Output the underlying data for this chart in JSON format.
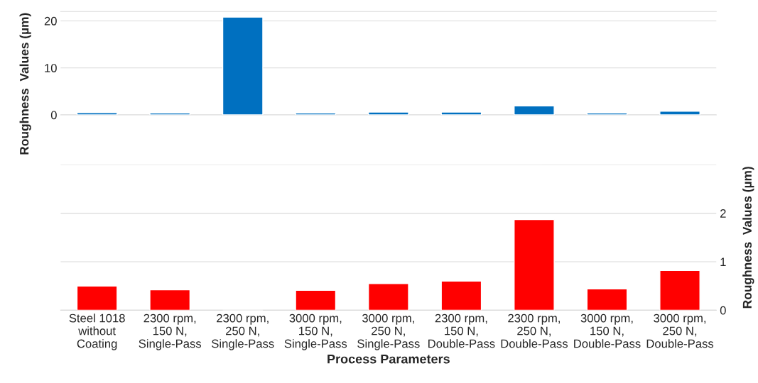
{
  "chart_data": [
    {
      "type": "bar",
      "categories": [
        null,
        null,
        null,
        null,
        null,
        null,
        null,
        null,
        null
      ],
      "series": [
        {
          "color": "#0070c0",
          "values": [
            0.5,
            0.4,
            20.8,
            0.4,
            0.6,
            0.6,
            1.9,
            0.4,
            0.8
          ]
        }
      ],
      "ylim": [
        0,
        22
      ],
      "yticks": [
        0,
        10,
        20
      ],
      "ylabel": "Roughness  Values (µm)",
      "grid": "y",
      "tick_labels": "y"
    },
    {
      "type": "bar",
      "categories": [
        "Steel 1018\nwithout\nCoating",
        "2300 rpm,\n150 N,\nSingle-Pass",
        "2300 rpm,\n250 N,\nSingle-Pass",
        "3000 rpm,\n150 N,\nSingle-Pass",
        "3000 rpm,\n250 N,\nSingle-Pass",
        "2300 rpm,\n150 N,\nDouble-Pass",
        "2300 rpm,\n250 N,\nDouble-Pass",
        "3000 rpm,\n150 N,\nDouble-Pass",
        "3000 rpm,\n250 N,\nDouble-Pass"
      ],
      "series": [
        {
          "color": "#ff0000",
          "axis": "y2",
          "values": [
            0.5,
            0.42,
            null,
            0.41,
            0.55,
            0.6,
            1.87,
            0.44,
            0.82
          ]
        }
      ],
      "y2lim": [
        0,
        3
      ],
      "y2ticks": [
        0,
        1,
        2,
        {
          "value": 3,
          "label": null
        }
      ],
      "y2label": "Roughness  Values (µm)",
      "xlabel": "Process Parameters",
      "grid": "y"
    }
  ]
}
